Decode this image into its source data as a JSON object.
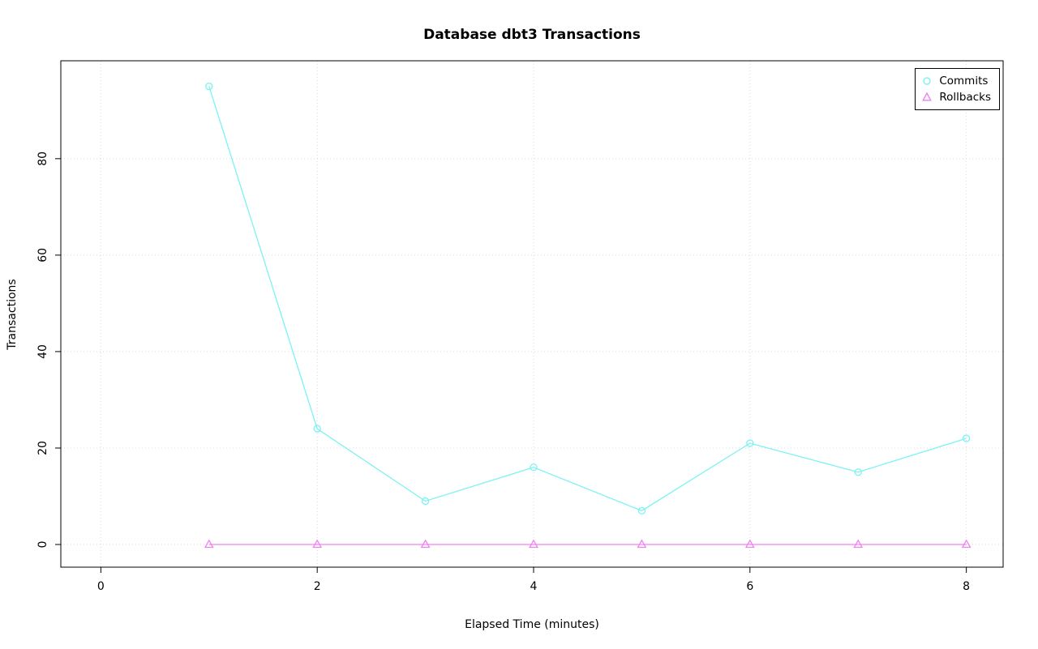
{
  "chart_data": {
    "type": "line",
    "title": "Database dbt3 Transactions",
    "xlabel": "Elapsed Time (minutes)",
    "ylabel": "Transactions",
    "x": [
      1,
      2,
      3,
      4,
      5,
      6,
      7,
      8
    ],
    "series": [
      {
        "name": "Commits",
        "marker": "circle",
        "color": "#7df2f2",
        "values": [
          95,
          24,
          9,
          16,
          7,
          21,
          15,
          22
        ]
      },
      {
        "name": "Rollbacks",
        "marker": "triangle",
        "color": "#ee82ee",
        "values": [
          0,
          0,
          0,
          0,
          0,
          0,
          0,
          0
        ]
      }
    ],
    "xticks": [
      0,
      2,
      4,
      6,
      8
    ],
    "yticks": [
      0,
      20,
      40,
      60,
      80
    ],
    "xlim": [
      -0.37,
      8.34
    ],
    "ylim": [
      -4.7,
      100.3
    ],
    "grid": true,
    "grid_color": "#d9d9d9",
    "axis_color": "#000000",
    "legend_position": "top-right"
  }
}
